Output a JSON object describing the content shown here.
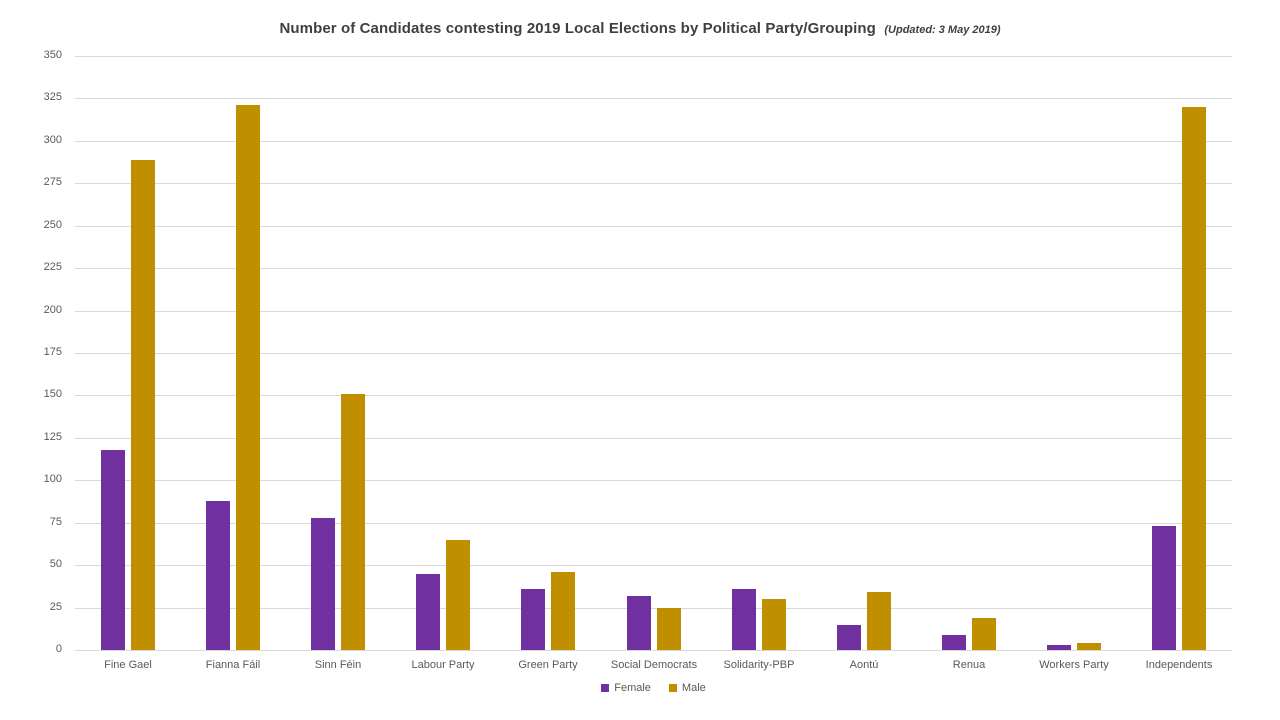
{
  "title": {
    "main": "Number of Candidates contesting 2019 Local Elections by Political Party/Grouping",
    "updated_note": "(Updated: 3 May 2019)"
  },
  "colors": {
    "female_series": "#7030A0",
    "male_series": "#BF8F00",
    "gridline": "#D9D9D9",
    "axis_text": "#595959",
    "title_text": "#404040",
    "background": "#FFFFFF"
  },
  "chart_data": {
    "type": "bar",
    "title": "Number of Candidates contesting 2019 Local Elections by Political Party/Grouping",
    "subtitle": "(Updated: 3 May 2019)",
    "categories": [
      "Fine Gael",
      "Fianna Fáil",
      "Sinn Féin",
      "Labour Party",
      "Green Party",
      "Social Democrats",
      "Solidarity-PBP",
      "Aontú",
      "Renua",
      "Workers Party",
      "Independents"
    ],
    "series": [
      {
        "name": "Female",
        "color": "#7030A0",
        "values": [
          118,
          88,
          78,
          45,
          36,
          32,
          36,
          15,
          9,
          3,
          73
        ]
      },
      {
        "name": "Male",
        "color": "#BF8F00",
        "values": [
          289,
          321,
          151,
          65,
          46,
          25,
          30,
          34,
          19,
          4,
          320
        ]
      }
    ],
    "xlabel": "",
    "ylabel": "",
    "ylim": [
      0,
      350
    ],
    "ytick_step": 25,
    "yticks": [
      0,
      25,
      50,
      75,
      100,
      125,
      150,
      175,
      200,
      225,
      250,
      275,
      300,
      325,
      350
    ],
    "grid": true,
    "legend_position": "bottom-center"
  }
}
